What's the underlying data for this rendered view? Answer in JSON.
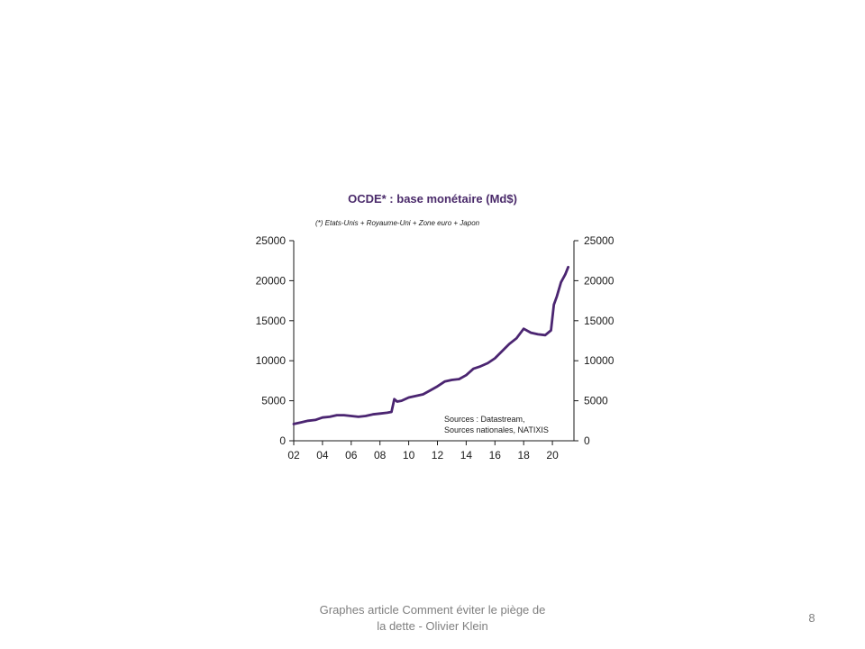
{
  "slide": {
    "footer_line1": "Graphes article Comment  éviter le piège de",
    "footer_line2": "la dette - Olivier Klein",
    "page_number": "8"
  },
  "chart_data": {
    "type": "line",
    "title": "OCDE* : base monétaire (Md$)",
    "note": "(*) Etats-Unis + Royaume-Uni + Zone euro + Japon",
    "source_line1": "Sources : Datastream,",
    "source_line2": "Sources nationales, NATIXIS",
    "xlabel": "",
    "ylabel": "",
    "xlim": [
      2002,
      2021.5
    ],
    "ylim": [
      0,
      25000
    ],
    "x_ticks": [
      "02",
      "04",
      "06",
      "08",
      "10",
      "12",
      "14",
      "16",
      "18",
      "20"
    ],
    "y_ticks_left": [
      "0",
      "5000",
      "10000",
      "15000",
      "20000",
      "25000"
    ],
    "y_ticks_right": [
      "0",
      "5000",
      "10000",
      "15000",
      "20000",
      "25000"
    ],
    "grid": false,
    "line_color": "#4b2571",
    "series": [
      {
        "x": [
          2002.0,
          2002.5,
          2003.0,
          2003.5,
          2004.0,
          2004.5,
          2005.0,
          2005.5,
          2006.0,
          2006.5,
          2007.0,
          2007.5,
          2008.0,
          2008.5,
          2008.8,
          2009.0,
          2009.2,
          2009.5,
          2010.0,
          2010.5,
          2011.0,
          2011.5,
          2012.0,
          2012.5,
          2013.0,
          2013.5,
          2014.0,
          2014.5,
          2015.0,
          2015.5,
          2016.0,
          2016.5,
          2017.0,
          2017.5,
          2018.0,
          2018.5,
          2019.0,
          2019.5,
          2019.9,
          2020.1,
          2020.3,
          2020.6,
          2020.9,
          2021.1
        ],
        "y": [
          2100,
          2300,
          2500,
          2600,
          2900,
          3000,
          3200,
          3200,
          3100,
          3000,
          3100,
          3300,
          3400,
          3500,
          3600,
          5200,
          4900,
          5000,
          5400,
          5600,
          5800,
          6300,
          6800,
          7400,
          7600,
          7700,
          8200,
          9000,
          9300,
          9700,
          10300,
          11200,
          12100,
          12800,
          14000,
          13500,
          13300,
          13200,
          13800,
          17000,
          18000,
          19800,
          20800,
          21700
        ]
      }
    ]
  }
}
